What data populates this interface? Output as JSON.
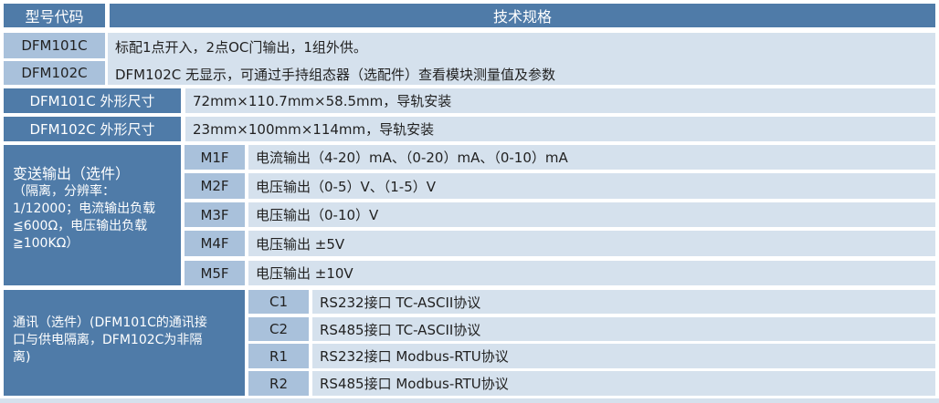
{
  "header": {
    "model_code": "型号代码",
    "spec": "技术规格"
  },
  "models": [
    {
      "code": "DFM101C",
      "desc": "标配1点开入，2点OC门输出，1组外供。"
    },
    {
      "code": "DFM102C",
      "desc": "DFM102C 无显示，可通过手持组态器（选配件）查看模块测量值及参数"
    }
  ],
  "dimensions": [
    {
      "label": "DFM101C 外形尺寸",
      "value": "72mm×110.7mm×58.5mm，导轨安装"
    },
    {
      "label": "DFM102C 外形尺寸",
      "value": "23mm×100mm×114mm，导轨安装"
    }
  ],
  "transmit": {
    "title": "变送输出（选件）",
    "note": "（隔离，分辨率：1/12000；电流输出负载≦600Ω，电压输出负载≧100KΩ）",
    "options": [
      {
        "code": "M1F",
        "desc": "电流输出（4-20）mA、（0-20）mA、（0-10）mA"
      },
      {
        "code": "M2F",
        "desc": "电压输出（0-5）V、（1-5）V"
      },
      {
        "code": "M3F",
        "desc": "电压输出（0-10）V"
      },
      {
        "code": "M4F",
        "desc": "电压输出 ±5V"
      },
      {
        "code": "M5F",
        "desc": "电压输出 ±10V"
      }
    ]
  },
  "comm": {
    "title": "通讯（选件）(DFM101C的通讯接口与供电隔离，DFM102C为非隔离)",
    "options": [
      {
        "code": "C1",
        "desc": "RS232接口 TC-ASCII协议"
      },
      {
        "code": "C2",
        "desc": "RS485接口 TC-ASCII协议"
      },
      {
        "code": "R1",
        "desc": "RS232接口 Modbus-RTU协议"
      },
      {
        "code": "R2",
        "desc": "RS485接口 Modbus-RTU协议"
      }
    ]
  },
  "colors": {
    "dark": "#4f7ba8",
    "mid": "#a9c1db",
    "light": "#d5e1ed"
  }
}
